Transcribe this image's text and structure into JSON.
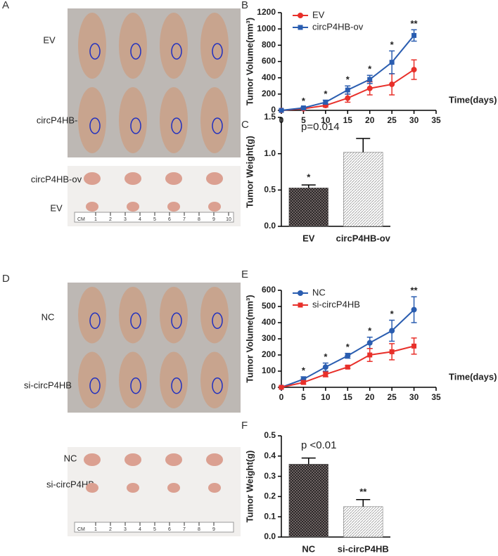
{
  "panel_labels": [
    "A",
    "B",
    "C",
    "D",
    "E",
    "F"
  ],
  "photos": [
    {
      "labels": [
        "EV",
        "circP4HB-ov"
      ]
    },
    {
      "labels": [
        "circP4HB-ov",
        "EV"
      ],
      "ruler_unit": "CM",
      "ruler": [
        "1",
        "2",
        "3",
        "4",
        "5",
        "6",
        "7",
        "8",
        "9",
        "10"
      ]
    },
    {
      "labels": [
        "NC",
        "si-circP4HB"
      ]
    },
    {
      "labels": [
        "NC",
        "si-circP4HB"
      ],
      "ruler_unit": "CM",
      "ruler": [
        "1",
        "2",
        "3",
        "4",
        "5",
        "6",
        "7",
        "8",
        "9"
      ]
    }
  ],
  "chart_data": [
    {
      "type": "line",
      "y_label": "Tumor Volume(mm³)",
      "x_label": "Time(days)",
      "x": [
        0,
        5,
        10,
        15,
        20,
        25,
        30
      ],
      "xlim": [
        0,
        35
      ],
      "xticks": [
        0,
        5,
        10,
        15,
        20,
        25,
        30,
        35
      ],
      "ylim": [
        0,
        1200
      ],
      "yticks": [
        0,
        200,
        400,
        600,
        800,
        1000,
        1200
      ],
      "legend": "top-left",
      "significance": [
        null,
        "*",
        "*",
        "*",
        "*",
        "*",
        "**"
      ],
      "series": [
        {
          "name": "EV",
          "color": "#e8302a",
          "marker": "circle",
          "values": [
            0,
            20,
            60,
            150,
            270,
            320,
            500
          ],
          "errors": [
            0,
            10,
            20,
            50,
            80,
            130,
            120
          ]
        },
        {
          "name": "circP4HB-ov",
          "color": "#2a5db0",
          "marker": "square",
          "values": [
            0,
            30,
            100,
            250,
            380,
            590,
            920
          ],
          "errors": [
            0,
            10,
            25,
            50,
            50,
            140,
            70
          ]
        }
      ]
    },
    {
      "type": "bar",
      "y_label": "Tumor Weight(g)",
      "annotation": "p=0.014",
      "categories": [
        "EV",
        "circP4HB-ov"
      ],
      "values": [
        0.53,
        1.02
      ],
      "errors": [
        0.04,
        0.19
      ],
      "significance": [
        "*",
        null
      ],
      "patterns": [
        "crosshatch",
        "hatch"
      ],
      "ylim": [
        0,
        1.5
      ],
      "yticks": [
        {
          "value": 0,
          "label": "0.0"
        },
        0.5,
        {
          "value": 1,
          "label": "1.0"
        },
        1.5
      ]
    },
    {
      "type": "line",
      "y_label": "Tumor Volume(mm³)",
      "x_label": "Time(days)",
      "x": [
        0,
        5,
        10,
        15,
        20,
        25,
        30
      ],
      "xlim": [
        0,
        35
      ],
      "xticks": [
        0,
        5,
        10,
        15,
        20,
        25,
        30,
        35
      ],
      "ylim": [
        0,
        600
      ],
      "yticks": [
        0,
        100,
        200,
        300,
        400,
        500,
        600
      ],
      "legend": "top-left",
      "significance": [
        null,
        "*",
        "*",
        "*",
        "*",
        "*",
        "**"
      ],
      "series": [
        {
          "name": "NC",
          "color": "#2a5db0",
          "marker": "circle",
          "values": [
            0,
            50,
            125,
            195,
            275,
            350,
            480
          ],
          "errors": [
            0,
            15,
            25,
            15,
            35,
            65,
            80
          ]
        },
        {
          "name": "si-circP4HB",
          "color": "#e8302a",
          "marker": "square",
          "values": [
            0,
            30,
            80,
            125,
            200,
            220,
            255
          ],
          "errors": [
            0,
            10,
            15,
            8,
            40,
            50,
            50
          ]
        }
      ]
    },
    {
      "type": "bar",
      "y_label": "Tumor Weight(g)",
      "annotation": "p <0.01",
      "categories": [
        "NC",
        "si-circP4HB"
      ],
      "values": [
        0.36,
        0.15
      ],
      "errors": [
        0.03,
        0.035
      ],
      "significance": [
        null,
        "**"
      ],
      "patterns": [
        "crosshatch",
        "hatch"
      ],
      "ylim": [
        0,
        0.5
      ],
      "yticks": [
        {
          "value": 0,
          "label": "0.0"
        },
        0.1,
        0.2,
        0.3,
        0.4,
        0.5
      ]
    }
  ]
}
